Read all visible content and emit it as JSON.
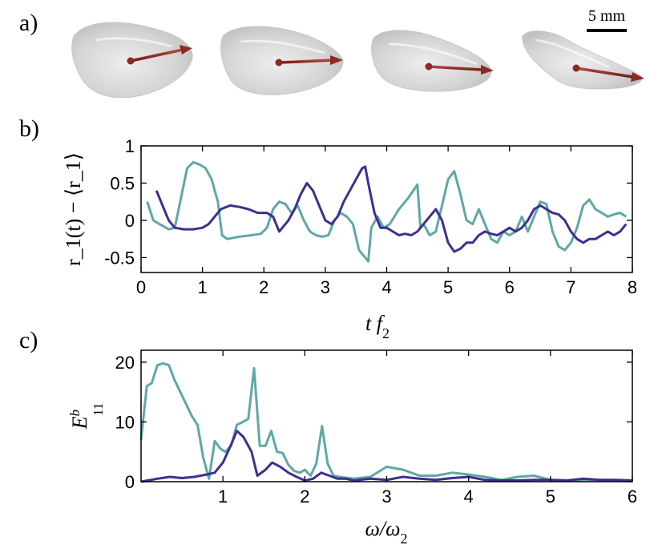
{
  "panels": {
    "a": "a)",
    "b": "b)",
    "c": "c)"
  },
  "scale_bar": {
    "label": "5 mm"
  },
  "colors": {
    "teal": "#5fa8a6",
    "purple": "#3e2f8f",
    "arrow": "#8b2b22",
    "shape_fill": "#dcdcdc"
  },
  "chart_data": [
    {
      "type": "line",
      "panel": "b",
      "xlabel": "t f_2",
      "xlabel_main": "t f",
      "xlabel_sub": "2",
      "ylabel": "r_1(t) − ⟨r_1⟩",
      "xlim": [
        0,
        8
      ],
      "ylim": [
        -0.7,
        1.0
      ],
      "xticks": [
        0,
        1,
        2,
        3,
        4,
        5,
        6,
        7,
        8
      ],
      "xtick_labels": [
        "0",
        "1",
        "2",
        "3",
        "4",
        "5",
        "6",
        "7",
        "8"
      ],
      "yticks": [
        1,
        0.5,
        0,
        -0.5
      ],
      "ytick_labels": [
        "1",
        "0.5",
        "0",
        "-0.5"
      ],
      "series": [
        {
          "color": "teal",
          "x": [
            0.1,
            0.2,
            0.3,
            0.45,
            0.55,
            0.65,
            0.75,
            0.85,
            0.95,
            1.05,
            1.15,
            1.25,
            1.32,
            1.4,
            1.6,
            1.8,
            1.95,
            2.05,
            2.15,
            2.25,
            2.35,
            2.45,
            2.55,
            2.65,
            2.75,
            2.85,
            2.95,
            3.05,
            3.15,
            3.25,
            3.35,
            3.45,
            3.55,
            3.65,
            3.7,
            3.75,
            3.85,
            3.95,
            4.05,
            4.2,
            4.35,
            4.5,
            4.55,
            4.6,
            4.7,
            4.8,
            4.9,
            5.0,
            5.1,
            5.2,
            5.3,
            5.4,
            5.5,
            5.6,
            5.7,
            5.8,
            5.9,
            6.0,
            6.1,
            6.2,
            6.3,
            6.4,
            6.5,
            6.6,
            6.7,
            6.8,
            6.9,
            7.0,
            7.1,
            7.2,
            7.3,
            7.4,
            7.5,
            7.6,
            7.7,
            7.8,
            7.9
          ],
          "y": [
            0.25,
            0.0,
            -0.05,
            -0.12,
            -0.1,
            0.3,
            0.7,
            0.78,
            0.75,
            0.7,
            0.55,
            0.25,
            -0.2,
            -0.25,
            -0.22,
            -0.2,
            -0.18,
            -0.1,
            0.15,
            0.25,
            0.22,
            0.1,
            0.2,
            0.0,
            -0.15,
            -0.2,
            -0.22,
            -0.2,
            0.0,
            0.1,
            0.05,
            -0.05,
            -0.4,
            -0.5,
            -0.55,
            -0.1,
            0.05,
            -0.1,
            -0.05,
            0.15,
            0.3,
            0.48,
            -0.1,
            -0.05,
            -0.2,
            -0.15,
            0.2,
            0.55,
            0.66,
            0.35,
            0.0,
            -0.05,
            0.15,
            -0.05,
            -0.25,
            -0.3,
            -0.15,
            -0.2,
            -0.15,
            0.05,
            -0.15,
            0.05,
            0.25,
            0.22,
            -0.15,
            -0.35,
            -0.4,
            -0.3,
            -0.1,
            0.2,
            0.28,
            0.15,
            0.1,
            0.05,
            0.08,
            0.1,
            0.05
          ]
        },
        {
          "color": "purple",
          "x": [
            0.25,
            0.35,
            0.45,
            0.55,
            0.7,
            0.85,
            1.0,
            1.1,
            1.2,
            1.3,
            1.45,
            1.6,
            1.75,
            1.9,
            2.05,
            2.15,
            2.25,
            2.4,
            2.5,
            2.6,
            2.7,
            2.8,
            2.9,
            3.0,
            3.1,
            3.2,
            3.3,
            3.4,
            3.5,
            3.6,
            3.65,
            3.7,
            3.8,
            3.9,
            4.0,
            4.1,
            4.2,
            4.3,
            4.4,
            4.5,
            4.6,
            4.7,
            4.8,
            4.9,
            5.0,
            5.1,
            5.2,
            5.3,
            5.4,
            5.5,
            5.6,
            5.7,
            5.8,
            5.9,
            6.0,
            6.1,
            6.2,
            6.3,
            6.4,
            6.5,
            6.6,
            6.7,
            6.8,
            6.9,
            7.0,
            7.1,
            7.2,
            7.3,
            7.4,
            7.5,
            7.6,
            7.7,
            7.8,
            7.9
          ],
          "y": [
            0.4,
            0.2,
            0.0,
            -0.1,
            -0.12,
            -0.12,
            -0.1,
            -0.05,
            0.05,
            0.15,
            0.2,
            0.18,
            0.15,
            0.1,
            0.1,
            0.05,
            -0.15,
            0.0,
            0.15,
            0.35,
            0.5,
            0.4,
            0.2,
            0.0,
            -0.05,
            0.05,
            0.25,
            0.4,
            0.55,
            0.7,
            0.72,
            0.5,
            0.1,
            -0.1,
            -0.1,
            -0.15,
            -0.2,
            -0.18,
            -0.2,
            -0.15,
            -0.05,
            0.05,
            0.15,
            0.0,
            -0.3,
            -0.42,
            -0.38,
            -0.3,
            -0.3,
            -0.2,
            -0.15,
            -0.18,
            -0.2,
            -0.15,
            -0.1,
            -0.15,
            -0.1,
            0.0,
            0.15,
            0.2,
            0.15,
            0.1,
            0.08,
            0.0,
            -0.15,
            -0.25,
            -0.3,
            -0.25,
            -0.25,
            -0.2,
            -0.15,
            -0.2,
            -0.15,
            -0.05
          ]
        }
      ]
    },
    {
      "type": "line",
      "panel": "c",
      "xlabel": "ω/ω_2",
      "xlabel_main": "ω/ω",
      "xlabel_sub": "2",
      "ylabel": "E^b_11",
      "ylabel_main": "E",
      "ylabel_sup": "b",
      "ylabel_sub": "11",
      "xlim": [
        0,
        6
      ],
      "ylim": [
        0,
        22
      ],
      "xticks": [
        1,
        2,
        3,
        4,
        5,
        6
      ],
      "xtick_labels": [
        "1",
        "2",
        "3",
        "4",
        "5",
        "6"
      ],
      "yticks": [
        0,
        10,
        20
      ],
      "ytick_labels": [
        "0",
        "10",
        "20"
      ],
      "series": [
        {
          "color": "teal",
          "x": [
            0.0,
            0.07,
            0.13,
            0.2,
            0.27,
            0.34,
            0.41,
            0.48,
            0.55,
            0.62,
            0.69,
            0.76,
            0.83,
            0.9,
            0.97,
            1.03,
            1.1,
            1.17,
            1.24,
            1.31,
            1.38,
            1.45,
            1.52,
            1.59,
            1.66,
            1.73,
            1.8,
            1.87,
            1.94,
            2.0,
            2.07,
            2.14,
            2.21,
            2.28,
            2.35,
            2.42,
            2.6,
            2.8,
            3.0,
            3.2,
            3.4,
            3.6,
            3.8,
            4.0,
            4.2,
            4.4,
            4.6,
            4.8,
            5.0,
            5.2,
            5.4,
            5.6,
            5.8,
            6.0
          ],
          "y": [
            7,
            16,
            16.5,
            19.5,
            19.8,
            19.5,
            17,
            15,
            13,
            11,
            9.5,
            4,
            0.5,
            6.8,
            5.5,
            5,
            6,
            9.5,
            10,
            10.5,
            19,
            6,
            6,
            8.5,
            5,
            4.8,
            2.8,
            1.8,
            1.5,
            2,
            1,
            3,
            9.3,
            3,
            1,
            0.8,
            0.5,
            0.8,
            2.5,
            2,
            1,
            1,
            1.5,
            1.2,
            0.8,
            0.3,
            0.8,
            1,
            0.3,
            0.2,
            0.3,
            0.3,
            0.2,
            0.1
          ]
        },
        {
          "color": "purple",
          "x": [
            0.0,
            0.2,
            0.35,
            0.5,
            0.65,
            0.8,
            0.9,
            1.0,
            1.1,
            1.17,
            1.25,
            1.35,
            1.42,
            1.52,
            1.6,
            1.7,
            1.8,
            1.9,
            2.0,
            2.1,
            2.2,
            2.3,
            2.4,
            2.5,
            2.6,
            2.8,
            3.0,
            3.2,
            3.4,
            3.6,
            3.8,
            4.0,
            4.2,
            4.4,
            4.6,
            4.8,
            5.0,
            5.2,
            5.4,
            5.6,
            5.8,
            6.0
          ],
          "y": [
            0,
            0.5,
            0.8,
            0.6,
            0.8,
            1.2,
            1.5,
            3.2,
            6.2,
            8.5,
            7.5,
            5,
            1,
            2,
            3.2,
            2.5,
            1.5,
            0.8,
            0.2,
            0.5,
            1.5,
            1,
            0.5,
            0.5,
            0.2,
            0.5,
            0.3,
            0.8,
            0.5,
            0.3,
            0.6,
            0.8,
            0.3,
            0.2,
            0.2,
            0.3,
            0.3,
            0.2,
            0.5,
            0.3,
            0.3,
            0.2
          ]
        }
      ]
    }
  ]
}
